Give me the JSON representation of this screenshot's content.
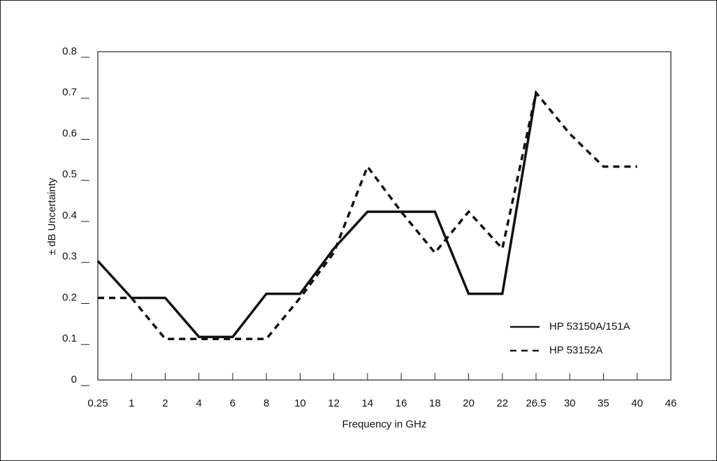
{
  "chart_data": {
    "type": "line",
    "x_label": "Frequency in GHz",
    "y_label": "± dB Uncertainty",
    "categories": [
      "0.25",
      "1",
      "2",
      "4",
      "6",
      "8",
      "10",
      "12",
      "14",
      "16",
      "18",
      "20",
      "22",
      "26.5",
      "30",
      "35",
      "40",
      "46"
    ],
    "series": [
      {
        "name": "HP 53150A/151A",
        "color": "#111111",
        "dash": "solid",
        "values": [
          0.29,
          0.2,
          0.2,
          0.105,
          0.105,
          0.21,
          0.21,
          0.32,
          0.41,
          0.41,
          0.41,
          0.21,
          0.21,
          0.7,
          null,
          null,
          null,
          null
        ]
      },
      {
        "name": "HP 53152A",
        "color": "#111111",
        "dash": "dashed",
        "values": [
          0.2,
          0.2,
          0.1,
          0.1,
          0.1,
          0.1,
          0.2,
          0.31,
          0.52,
          0.41,
          0.31,
          0.41,
          0.32,
          0.7,
          0.6,
          0.52,
          0.52,
          null
        ]
      }
    ],
    "ylim": [
      0,
      0.8
    ],
    "yticks": [
      0,
      0.1,
      0.2,
      0.3,
      0.4,
      0.5,
      0.6,
      0.7,
      0.8
    ],
    "legend": "lower right"
  }
}
